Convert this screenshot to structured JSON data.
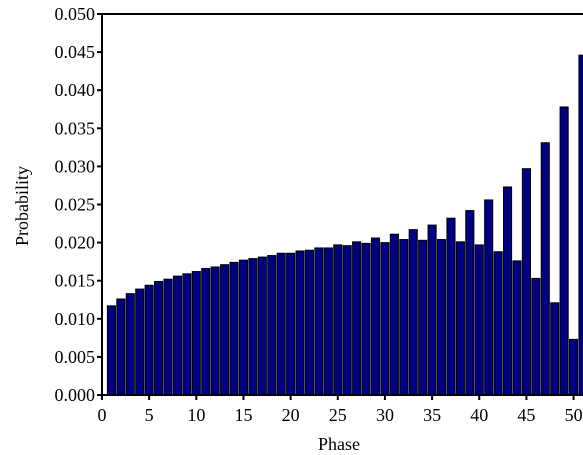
{
  "chart_data": {
    "type": "bar",
    "title": "",
    "xlabel": "Phase",
    "ylabel": "Probability",
    "xlim": [
      0,
      51
    ],
    "ylim": [
      0,
      0.05
    ],
    "grid": false,
    "bar_color": "#000080",
    "bar_edge_color": "#000000",
    "x_ticks": [
      {
        "value": 0,
        "label": "0"
      },
      {
        "value": 5,
        "label": "5"
      },
      {
        "value": 10,
        "label": "10"
      },
      {
        "value": 15,
        "label": "15"
      },
      {
        "value": 20,
        "label": "20"
      },
      {
        "value": 25,
        "label": "25"
      },
      {
        "value": 30,
        "label": "30"
      },
      {
        "value": 35,
        "label": "35"
      },
      {
        "value": 40,
        "label": "40"
      },
      {
        "value": 45,
        "label": "45"
      },
      {
        "value": 50,
        "label": "50"
      }
    ],
    "y_ticks": [
      {
        "value": 0,
        "label": "0.000"
      },
      {
        "value": 0.005,
        "label": "0.005"
      },
      {
        "value": 0.01,
        "label": "0.010"
      },
      {
        "value": 0.015,
        "label": "0.015"
      },
      {
        "value": 0.02,
        "label": "0.020"
      },
      {
        "value": 0.025,
        "label": "0.025"
      },
      {
        "value": 0.03,
        "label": "0.030"
      },
      {
        "value": 0.035,
        "label": "0.035"
      },
      {
        "value": 0.04,
        "label": "0.040"
      },
      {
        "value": 0.045,
        "label": "0.045"
      },
      {
        "value": 0.05,
        "label": "0.050"
      }
    ],
    "x": [
      1,
      2,
      3,
      4,
      5,
      6,
      7,
      8,
      9,
      10,
      11,
      12,
      13,
      14,
      15,
      16,
      17,
      18,
      19,
      20,
      21,
      22,
      23,
      24,
      25,
      26,
      27,
      28,
      29,
      30,
      31,
      32,
      33,
      34,
      35,
      36,
      37,
      38,
      39,
      40,
      41,
      42,
      43,
      44,
      45,
      46,
      47,
      48,
      49,
      50,
      51
    ],
    "values": [
      0.0117,
      0.0126,
      0.0133,
      0.0139,
      0.0144,
      0.0149,
      0.0152,
      0.0156,
      0.0159,
      0.0162,
      0.0166,
      0.0168,
      0.0171,
      0.0174,
      0.0177,
      0.0179,
      0.0181,
      0.0183,
      0.0186,
      0.0186,
      0.0189,
      0.019,
      0.0193,
      0.0193,
      0.0197,
      0.0196,
      0.0201,
      0.0199,
      0.0206,
      0.02,
      0.0211,
      0.0204,
      0.0217,
      0.0203,
      0.0223,
      0.0204,
      0.0232,
      0.0201,
      0.0242,
      0.0197,
      0.0256,
      0.0188,
      0.0273,
      0.0176,
      0.0297,
      0.0153,
      0.0331,
      0.0121,
      0.0378,
      0.0073,
      0.0446
    ]
  }
}
